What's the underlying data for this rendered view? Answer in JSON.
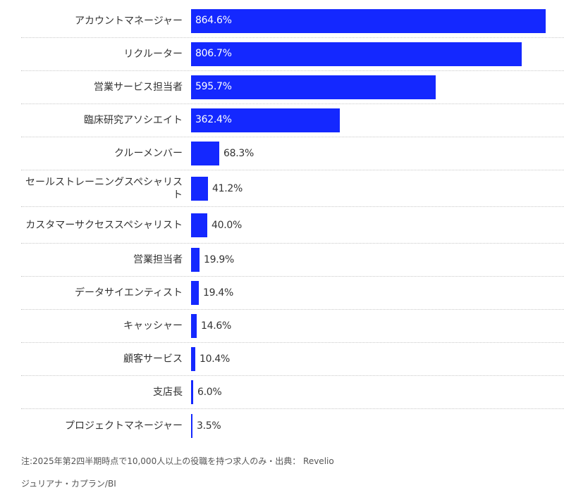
{
  "chart_data": {
    "type": "bar",
    "orientation": "horizontal",
    "categories": [
      "アカウントマネージャー",
      "リクルーター",
      "営業サービス担当者",
      "臨床研究アソシエイト",
      "クルーメンバー",
      "セールストレーニングスペシャリスト",
      "カスタマーサクセススペシャリスト",
      "営業担当者",
      "データサイエンティスト",
      "キャッシャー",
      "顧客サービス",
      "支店長",
      "プロジェクトマネージャー"
    ],
    "values": [
      864.6,
      806.7,
      595.7,
      362.4,
      68.3,
      41.2,
      40.0,
      19.9,
      19.4,
      14.6,
      10.4,
      6.0,
      3.5
    ],
    "value_labels": [
      "864.6%",
      "806.7%",
      "595.7%",
      "362.4%",
      "68.3%",
      "41.2%",
      "40.0%",
      "19.9%",
      "19.4%",
      "14.6%",
      "10.4%",
      "6.0%",
      "3.5%"
    ],
    "unit": "%",
    "bar_color": "#1428ff",
    "xlim": [
      0,
      864.6
    ],
    "grid": false
  },
  "footer": {
    "note": "注:2025年第2四半期時点で10,000人以上の役職を持つ求人のみ・出典： Revelio",
    "credit": "ジュリアナ・カプラン/BI"
  }
}
